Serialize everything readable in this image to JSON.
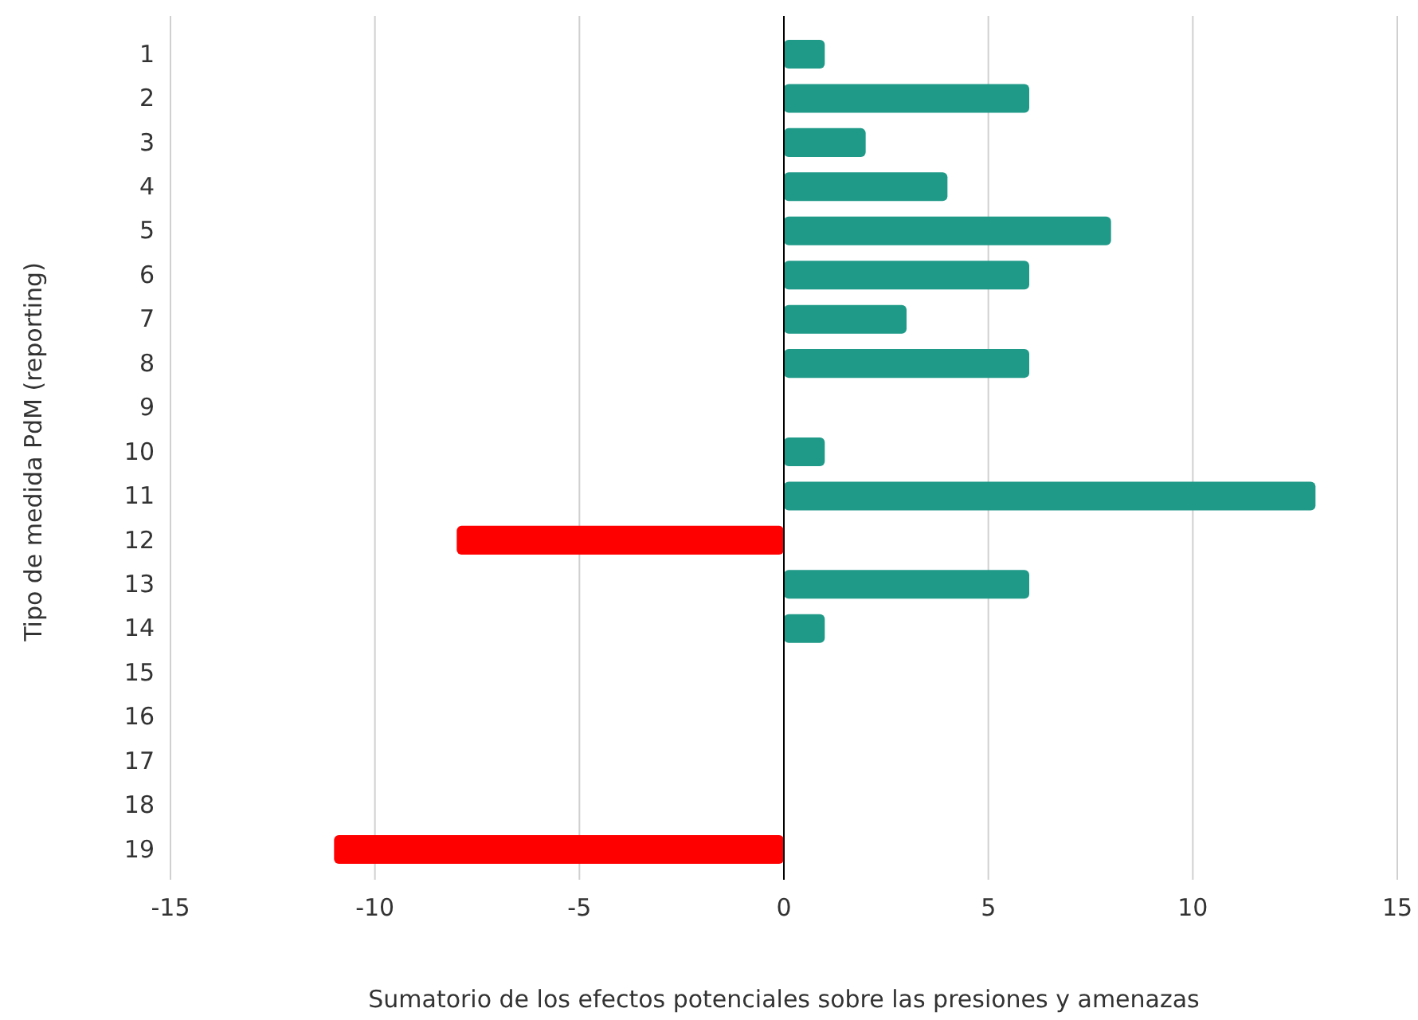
{
  "chart_data": {
    "type": "bar",
    "orientation": "horizontal",
    "xlabel": "Sumatorio de los efectos potenciales sobre las presiones y amenazas",
    "ylabel": "Tipo de medida PdM (reporting)",
    "categories": [
      "1",
      "2",
      "3",
      "4",
      "5",
      "6",
      "7",
      "8",
      "9",
      "10",
      "11",
      "12",
      "13",
      "14",
      "15",
      "16",
      "17",
      "18",
      "19"
    ],
    "values": [
      1,
      6,
      2,
      4,
      8,
      6,
      3,
      6,
      null,
      1,
      13,
      -8,
      6,
      1,
      null,
      null,
      null,
      null,
      -11
    ],
    "colors": [
      "#1f9a88",
      "#1f9a88",
      "#1f9a88",
      "#1f9a88",
      "#1f9a88",
      "#1f9a88",
      "#1f9a88",
      "#1f9a88",
      null,
      "#1f9a88",
      "#1f9a88",
      "#ff0000",
      "#1f9a88",
      "#1f9a88",
      null,
      null,
      null,
      null,
      "#ff0000"
    ],
    "xlim": [
      -15,
      15
    ],
    "xticks": [
      -15,
      -10,
      -5,
      0,
      5,
      10,
      15
    ],
    "grid": "x"
  }
}
